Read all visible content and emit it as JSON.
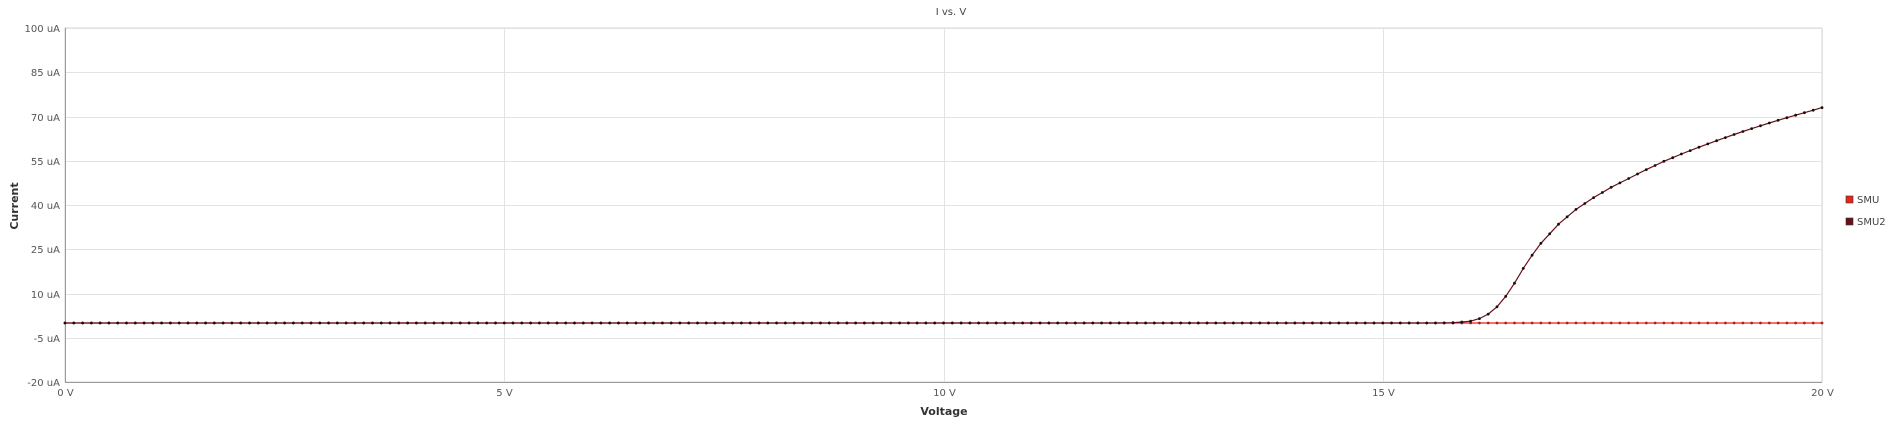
{
  "chart_data": {
    "type": "line",
    "title": "I vs. V",
    "xlabel": "Voltage",
    "ylabel": "Current",
    "xlim": [
      0,
      20
    ],
    "ylim": [
      -20,
      100
    ],
    "x_ticks": [
      0,
      5,
      10,
      15,
      20
    ],
    "x_tick_labels": [
      "0 V",
      "5 V",
      "10 V",
      "15 V",
      "20 V"
    ],
    "y_ticks": [
      -20,
      -5,
      10,
      25,
      40,
      55,
      70,
      85,
      100
    ],
    "y_tick_labels": [
      "-20 uA",
      "-5 uA",
      "10 uA",
      "25 uA",
      "40 uA",
      "55 uA",
      "70 uA",
      "85 uA",
      "100 uA"
    ],
    "grid": true,
    "legend_position": "right",
    "x": {
      "start": 0,
      "stop": 20,
      "step": 0.1
    },
    "series": [
      {
        "name": "SMU",
        "color": "#e8231a",
        "marker_color": "#b01e1e",
        "values": [
          [
            0,
            0
          ],
          [
            20,
            0
          ]
        ]
      },
      {
        "name": "SMU2",
        "color": "#6b0f16",
        "marker_color": "#111111",
        "values": [
          [
            0,
            0
          ],
          [
            15.6,
            0
          ],
          [
            15.8,
            0.1
          ],
          [
            16.0,
            0.6
          ],
          [
            16.1,
            1.5
          ],
          [
            16.2,
            3.0
          ],
          [
            16.3,
            5.5
          ],
          [
            16.4,
            9.0
          ],
          [
            16.5,
            13.5
          ],
          [
            16.6,
            18.5
          ],
          [
            16.7,
            23.0
          ],
          [
            16.8,
            27.0
          ],
          [
            17.0,
            33.5
          ],
          [
            17.2,
            38.5
          ],
          [
            17.4,
            42.5
          ],
          [
            17.6,
            46.0
          ],
          [
            17.8,
            49.0
          ],
          [
            18.0,
            52.0
          ],
          [
            18.2,
            54.8
          ],
          [
            18.4,
            57.3
          ],
          [
            18.6,
            59.6
          ],
          [
            18.8,
            61.8
          ],
          [
            19.0,
            63.9
          ],
          [
            19.2,
            65.9
          ],
          [
            19.4,
            67.8
          ],
          [
            19.6,
            69.6
          ],
          [
            19.8,
            71.3
          ],
          [
            20.0,
            73.0
          ]
        ]
      }
    ]
  }
}
